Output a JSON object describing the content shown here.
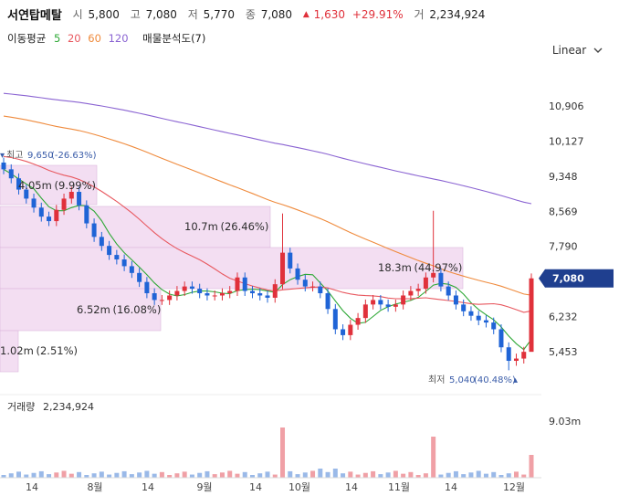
{
  "header": {
    "stock_name": "서연탑메탈",
    "open_label": "시",
    "open": "5,800",
    "high_label": "고",
    "high": "7,080",
    "low_label": "저",
    "low": "5,770",
    "close_label": "종",
    "close": "7,080",
    "change_arrow": "▲",
    "change": "1,630",
    "change_pct": "+29.91%",
    "volume_label": "거",
    "volume": "2,234,924"
  },
  "indicators": {
    "ma_label": "이동평균",
    "ma_periods": [
      "5",
      "20",
      "60",
      "120"
    ],
    "volume_profile_label": "매물분석도(7)"
  },
  "controls": {
    "scale_mode": "Linear"
  },
  "chart_data": {
    "type": "candlestick",
    "price_ticks": [
      "10,906",
      "10,127",
      "9,348",
      "8,569",
      "7,790",
      "6,232",
      "5,453"
    ],
    "current_price_tag": "7,080",
    "x_ticks": [
      "14",
      "8월",
      "14",
      "9월",
      "14",
      "10월",
      "14",
      "11월",
      "14",
      "12월"
    ],
    "high_marker": {
      "label": "최고",
      "value": "9,650",
      "pct": "(-26.63%)"
    },
    "low_marker": {
      "label": "최저",
      "value": "5,040",
      "pct": "(40.48%)"
    },
    "volume_profile": [
      {
        "volume": "4.05m",
        "pct": "(9.99%)"
      },
      {
        "volume": "10.7m",
        "pct": "(26.46%)"
      },
      {
        "volume": "18.3m",
        "pct": "(44.97%)"
      },
      {
        "volume": "6.52m",
        "pct": "(16.08%)"
      },
      {
        "volume": "1.02m",
        "pct": "(2.51%)"
      }
    ],
    "volume_label": "거래량",
    "volume_value": "2,234,924",
    "volume_axis_tick": "9.03m",
    "close_series": [
      9500,
      9300,
      9050,
      8850,
      8650,
      8450,
      8350,
      8600,
      8850,
      9000,
      8700,
      8300,
      8000,
      7800,
      7600,
      7500,
      7350,
      7200,
      7000,
      6750,
      6600,
      6600,
      6700,
      6800,
      6900,
      6850,
      6750,
      6700,
      6700,
      6750,
      6800,
      7100,
      6800,
      6750,
      6700,
      6650,
      6950,
      7650,
      7300,
      7050,
      6900,
      6900,
      6750,
      6400,
      5950,
      5820,
      6050,
      6200,
      6500,
      6600,
      6500,
      6450,
      6500,
      6700,
      6800,
      6850,
      7100,
      7200,
      6900,
      6700,
      6500,
      6350,
      6250,
      6150,
      6100,
      5950,
      5550,
      5250,
      5300,
      5450,
      7080
    ],
    "colors": {
      "up": "#e0313b",
      "down": "#1f64d6",
      "price_tag": "#1f3f8f",
      "profile_fill": "#f3def2",
      "profile_edge": "#dcb8dc",
      "volume_bar": "#f0a0a6"
    }
  }
}
